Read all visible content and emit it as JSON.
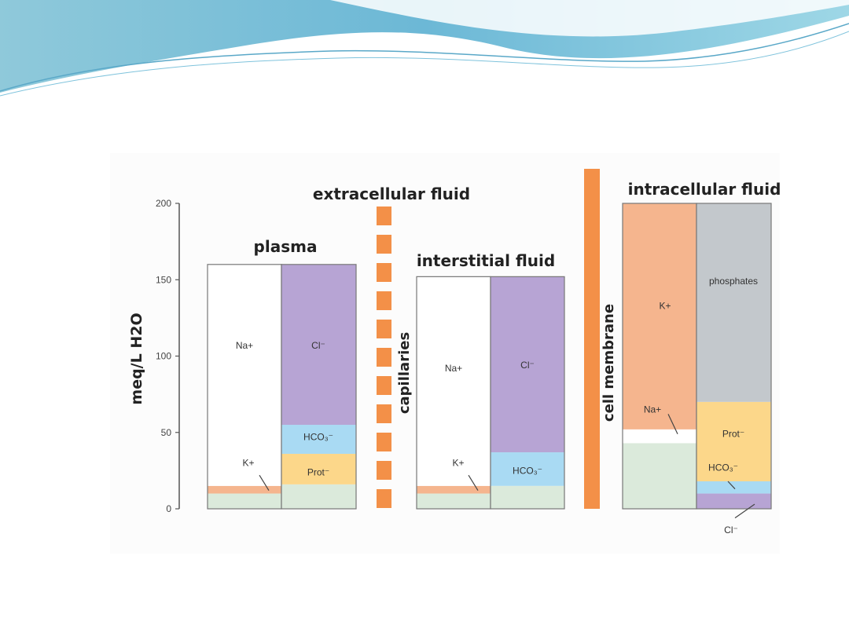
{
  "chart_data": {
    "type": "bar",
    "stacked": true,
    "ylabel": "meq/L H2O",
    "ylim": [
      0,
      200
    ],
    "yticks": [
      "200",
      "150",
      "100",
      "50",
      "0"
    ],
    "grid": false,
    "header_labels": {
      "extracellular": "extracellular fluid",
      "intracellular": "intracellular fluid",
      "capillaries": "capillaries",
      "cell_membrane": "cell membrane"
    },
    "compartments": [
      {
        "name": "plasma",
        "columns": [
          {
            "segments": [
              {
                "label": "",
                "value": 10,
                "color": "#dbeadb"
              },
              {
                "label": "K+",
                "value": 5,
                "color": "#f5b58e"
              },
              {
                "label": "Na+",
                "value": 145,
                "color": "#ffffff"
              }
            ]
          },
          {
            "segments": [
              {
                "label": "",
                "value": 16,
                "color": "#dbeadb"
              },
              {
                "label": "Prot⁻",
                "value": 20,
                "color": "#fcd78a"
              },
              {
                "label": "HCO₃⁻",
                "value": 19,
                "color": "#a9daf3"
              },
              {
                "label": "Cl⁻",
                "value": 105,
                "color": "#b7a4d4"
              }
            ]
          }
        ]
      },
      {
        "name": "interstitial  fluid",
        "columns": [
          {
            "segments": [
              {
                "label": "",
                "value": 10,
                "color": "#dbeadb"
              },
              {
                "label": "K+",
                "value": 5,
                "color": "#f5b58e"
              },
              {
                "label": "Na+",
                "value": 137,
                "color": "#ffffff"
              }
            ]
          },
          {
            "segments": [
              {
                "label": "",
                "value": 15,
                "color": "#dbeadb"
              },
              {
                "label": "HCO₃⁻",
                "value": 22,
                "color": "#a9daf3"
              },
              {
                "label": "Cl⁻",
                "value": 115,
                "color": "#b7a4d4"
              }
            ]
          }
        ]
      },
      {
        "name": "",
        "columns": [
          {
            "segments": [
              {
                "label": "",
                "value": 43,
                "color": "#dbeadb"
              },
              {
                "label": "Na+",
                "value": 9,
                "color": "#ffffff"
              },
              {
                "label": "K+",
                "value": 148,
                "color": "#f5b58e"
              }
            ]
          },
          {
            "segments": [
              {
                "label": "Cl⁻",
                "value": 10,
                "color": "#b7a4d4"
              },
              {
                "label": "HCO₃⁻",
                "value": 8,
                "color": "#a9daf3"
              },
              {
                "label": "Prot⁻",
                "value": 52,
                "color": "#fcd78a"
              },
              {
                "label": "phosphates",
                "value": 130,
                "color": "#c3c8cc"
              }
            ]
          }
        ]
      }
    ],
    "barrier_color": "#f39048"
  }
}
